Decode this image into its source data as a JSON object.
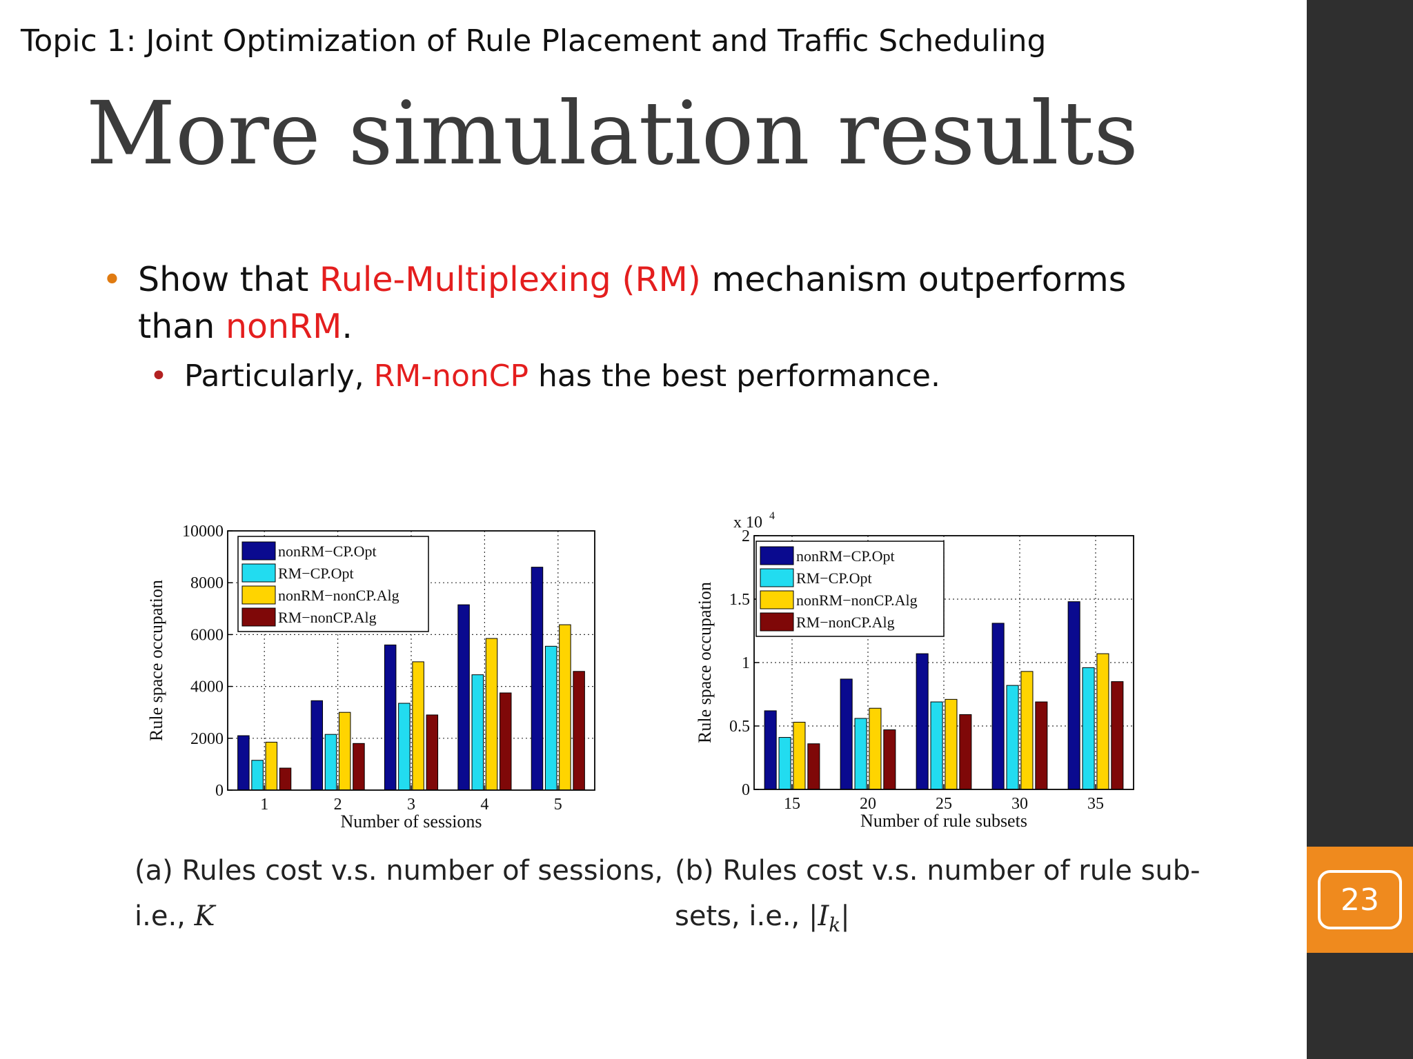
{
  "header": {
    "topic": "Topic 1:  Joint Optimization of Rule Placement and Traffic Scheduling",
    "title": "More simulation results"
  },
  "bullets": {
    "b1_pre": "Show that ",
    "b1_red1": "Rule-Multiplexing (RM)",
    "b1_mid": " mechanism outperforms than ",
    "b1_red2": "nonRM",
    "b1_end": ".",
    "b2_pre": "Particularly, ",
    "b2_red": "RM-nonCP",
    "b2_end": " has the best performance."
  },
  "captions": {
    "a_text": "(a) Rules cost v.s.  number of sessions,",
    "a_line2": "i.e., ",
    "a_math": "K",
    "b_text": "(b) Rules cost v.s.  number of rule sub-",
    "b_line2": "sets, i.e., ",
    "b_math": "|I",
    "b_math_sub": "k",
    "b_math_end": "|"
  },
  "page_number": "23",
  "colors": {
    "orange": "#ef8a1e",
    "sidebar": "#2f2f2f",
    "series": [
      "#0a0a8f",
      "#22dcf0",
      "#ffd400",
      "#7f0808"
    ]
  },
  "chart_data": [
    {
      "type": "bar",
      "categories": [
        "1",
        "2",
        "3",
        "4",
        "5"
      ],
      "xlabel": "Number of sessions",
      "ylabel": "Rule space occupation",
      "ylim": [
        0,
        10000
      ],
      "yticks": [
        "0",
        "2000",
        "4000",
        "6000",
        "8000",
        "10000"
      ],
      "grid": true,
      "legend": "top-left",
      "series": [
        {
          "name": "nonRM−CP.Opt",
          "values": [
            2100,
            3450,
            5600,
            7150,
            8600
          ]
        },
        {
          "name": "RM−CP.Opt",
          "values": [
            1150,
            2150,
            3350,
            4450,
            5550
          ]
        },
        {
          "name": "nonRM−nonCP.Alg",
          "values": [
            1850,
            3000,
            4950,
            5850,
            6380
          ]
        },
        {
          "name": "RM−nonCP.Alg",
          "values": [
            850,
            1800,
            2900,
            3750,
            4580
          ]
        }
      ]
    },
    {
      "type": "bar",
      "categories": [
        "15",
        "20",
        "25",
        "30",
        "35"
      ],
      "xlabel": "Number of rule subsets",
      "ylabel": "Rule space occupation",
      "ylim": [
        0,
        2
      ],
      "yticks": [
        "0",
        "0.5",
        "1",
        "1.5",
        "2"
      ],
      "multiplier": "x 10",
      "multiplier_exp": "4",
      "grid": true,
      "legend": "top-left",
      "series": [
        {
          "name": "nonRM−CP.Opt",
          "values": [
            0.62,
            0.87,
            1.07,
            1.31,
            1.48
          ]
        },
        {
          "name": "RM−CP.Opt",
          "values": [
            0.41,
            0.56,
            0.69,
            0.82,
            0.96
          ]
        },
        {
          "name": "nonRM−nonCP.Alg",
          "values": [
            0.53,
            0.64,
            0.71,
            0.93,
            1.07
          ]
        },
        {
          "name": "RM−nonCP.Alg",
          "values": [
            0.36,
            0.47,
            0.59,
            0.69,
            0.85
          ]
        }
      ]
    }
  ]
}
